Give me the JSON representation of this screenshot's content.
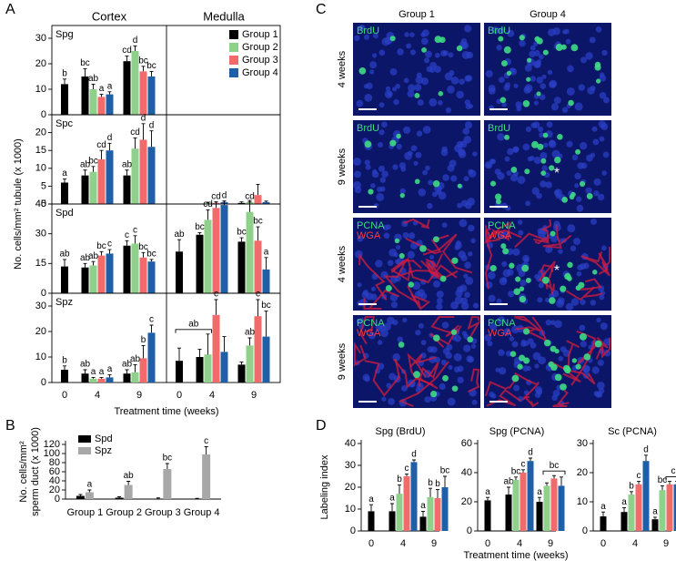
{
  "chart_data": [
    {
      "type": "bar-grid",
      "panel": "A",
      "column_titles": [
        "Cortex",
        "Medulla"
      ],
      "ylabel": "No. cells/mm² tubule (x 1000)",
      "xlabel": "Treatment time (weeks)",
      "categories": [
        "0",
        "4",
        "9",
        "0",
        "4",
        "9"
      ],
      "legend": "top-right",
      "series": [
        {
          "name": "Group 1",
          "color": "#000000"
        },
        {
          "name": "Group 2",
          "color": "#8fd08a"
        },
        {
          "name": "Group 3",
          "color": "#f26b6b"
        },
        {
          "name": "Group 4",
          "color": "#1f5fa8"
        }
      ],
      "rows": [
        {
          "label": "Spg",
          "ylim": [
            0,
            35
          ],
          "yticks": [
            0,
            10,
            20,
            30
          ],
          "values": [
            [
              12,
              15,
              21,
              null,
              null,
              null
            ],
            [
              null,
              10,
              25,
              null,
              null,
              null
            ],
            [
              null,
              7,
              17,
              null,
              null,
              null
            ],
            [
              null,
              8,
              15,
              null,
              null,
              null
            ]
          ],
          "errors": [
            [
              2,
              3,
              2,
              null,
              null,
              null
            ],
            [
              null,
              2,
              2,
              null,
              null,
              null
            ],
            [
              null,
              1,
              2,
              null,
              null,
              null
            ],
            [
              null,
              1,
              2,
              null,
              null,
              null
            ]
          ],
          "letters": [
            [
              "b",
              "bc",
              "cd",
              null,
              null,
              null
            ],
            [
              null,
              "ab",
              "d",
              null,
              null,
              null
            ],
            [
              null,
              "a",
              "bc",
              null,
              null,
              null
            ],
            [
              null,
              "a",
              "bc",
              null,
              null,
              null
            ]
          ]
        },
        {
          "label": "Spc",
          "ylim": [
            0,
            25
          ],
          "yticks": [
            0,
            5,
            10,
            15,
            20
          ],
          "values": [
            [
              6,
              8,
              8,
              0,
              0,
              0.3
            ],
            [
              null,
              9,
              15.5,
              null,
              0.2,
              0.5
            ],
            [
              null,
              12.5,
              18,
              null,
              0.3,
              2.5
            ],
            [
              null,
              15,
              16,
              null,
              0.5,
              0.5
            ]
          ],
          "errors": [
            [
              1,
              1.5,
              1.5,
              0,
              0,
              0.3
            ],
            [
              null,
              1.5,
              3,
              null,
              0.3,
              0.5
            ],
            [
              null,
              2.5,
              4.5,
              null,
              0.3,
              3
            ],
            [
              null,
              2,
              4.5,
              null,
              0.3,
              0.3
            ]
          ],
          "letters": [
            [
              "a",
              "ab",
              "ab",
              null,
              null,
              null
            ],
            [
              null,
              "bc",
              "cd",
              null,
              null,
              null
            ],
            [
              null,
              "cd",
              "d",
              null,
              null,
              null
            ],
            [
              null,
              "d",
              "d",
              null,
              null,
              null
            ]
          ]
        },
        {
          "label": "Spd",
          "ylim": [
            0,
            45
          ],
          "yticks": [
            0,
            15,
            30,
            45
          ],
          "values": [
            [
              13.5,
              13,
              24,
              21,
              29.5,
              26
            ],
            [
              null,
              14,
              25,
              null,
              37,
              41
            ],
            [
              null,
              19,
              18,
              null,
              43,
              26.5
            ],
            [
              null,
              20,
              16,
              null,
              44.5,
              12
            ]
          ],
          "errors": [
            [
              3.5,
              2,
              2.5,
              6,
              1,
              2
            ],
            [
              null,
              2,
              4,
              null,
              5,
              5
            ],
            [
              null,
              2,
              2.5,
              null,
              3,
              7
            ],
            [
              null,
              2,
              1,
              null,
              2,
              6
            ]
          ],
          "letters": [
            [
              "ab",
              "ab",
              "c",
              "ab",
              "bc",
              "bc"
            ],
            [
              null,
              "ab",
              "c",
              null,
              "cd",
              "cd"
            ],
            [
              null,
              "bc",
              "bc",
              null,
              "cd",
              "bc"
            ],
            [
              null,
              "c",
              "bc",
              null,
              "d",
              "a"
            ]
          ]
        },
        {
          "label": "Spz",
          "ylim": [
            0,
            35
          ],
          "yticks": [
            0,
            10,
            20,
            30
          ],
          "values": [
            [
              5,
              3.5,
              3.5,
              8.5,
              10,
              7
            ],
            [
              null,
              1.5,
              4,
              null,
              11,
              14.5
            ],
            [
              null,
              1.5,
              9.5,
              null,
              26.5,
              26
            ],
            [
              null,
              2,
              19.5,
              null,
              12,
              18
            ]
          ],
          "errors": [
            [
              1.5,
              1.5,
              1.5,
              5,
              3,
              1
            ],
            [
              null,
              0.5,
              3,
              null,
              8,
              3
            ],
            [
              null,
              0.5,
              5,
              null,
              6,
              6.5
            ],
            [
              null,
              1,
              3,
              null,
              6,
              10
            ]
          ],
          "letters": [
            [
              "b",
              "ab",
              "ab",
              null,
              null,
              null
            ],
            [
              null,
              "a",
              "ab",
              null,
              null,
              "ab"
            ],
            [
              null,
              "a",
              "b",
              null,
              "c",
              "c"
            ],
            [
              null,
              "a",
              "c",
              null,
              null,
              "bc"
            ]
          ],
          "group_letters": [
            null,
            null,
            null,
            "ab",
            null,
            null
          ]
        }
      ]
    },
    {
      "type": "bar",
      "panel": "B",
      "ylabel": [
        "No. cells/mm²",
        "sperm duct (x 1000)"
      ],
      "legend": "top-left",
      "categories": [
        "Group 1",
        "Group 2",
        "Group 3",
        "Group 4"
      ],
      "ylim": [
        0,
        120
      ],
      "yticks": [
        0,
        20,
        40,
        60,
        80,
        100,
        120
      ],
      "series": [
        {
          "name": "Spd",
          "color": "#000000",
          "values": [
            7,
            3,
            1,
            1
          ],
          "errors": [
            3,
            2,
            1.5,
            0.5
          ]
        },
        {
          "name": "Spz",
          "color": "#a8a8a8",
          "values": [
            15,
            31,
            66,
            98
          ],
          "errors": [
            5,
            8,
            12,
            17
          ],
          "letters": [
            "a",
            "ab",
            "bc",
            "c"
          ]
        }
      ]
    },
    {
      "type": "bar",
      "panel": "D",
      "title": "Spg (BrdU)",
      "ylabel": "Labeling index",
      "categories": [
        "0",
        "4",
        "9"
      ],
      "ylim": [
        0,
        40
      ],
      "yticks": [
        0,
        10,
        20,
        30,
        40
      ],
      "series": [
        {
          "color": "#000000",
          "values": [
            9,
            9,
            6.5
          ],
          "errors": [
            3,
            3.5,
            2.5
          ],
          "letters": [
            "a",
            "a",
            "a"
          ]
        },
        {
          "color": "#8fd08a",
          "values": [
            null,
            17,
            15.5
          ],
          "errors": [
            null,
            4,
            4
          ],
          "letters": [
            null,
            "b",
            "b"
          ]
        },
        {
          "color": "#f26b6b",
          "values": [
            null,
            25,
            15
          ],
          "errors": [
            null,
            1,
            4
          ],
          "letters": [
            null,
            "c",
            "b"
          ]
        },
        {
          "color": "#1f5fa8",
          "values": [
            null,
            31.5,
            20
          ],
          "errors": [
            null,
            1,
            5
          ],
          "letters": [
            null,
            "d",
            "bc"
          ]
        }
      ]
    },
    {
      "type": "bar",
      "title": "Spg (PCNA)",
      "xlabel": "Treatment time (weeks)",
      "categories": [
        "0",
        "4",
        "9"
      ],
      "ylim": [
        0,
        60
      ],
      "yticks": [
        0,
        20,
        40,
        60
      ],
      "series": [
        {
          "color": "#000000",
          "values": [
            21,
            25,
            20
          ],
          "errors": [
            2,
            5,
            3
          ],
          "letters": [
            "a",
            "ab",
            "a"
          ]
        },
        {
          "color": "#8fd08a",
          "values": [
            null,
            35,
            31
          ],
          "errors": [
            null,
            2,
            2
          ],
          "letters": [
            null,
            "bc",
            null
          ]
        },
        {
          "color": "#f26b6b",
          "values": [
            null,
            40,
            36
          ],
          "errors": [
            null,
            2,
            2
          ],
          "letters": [
            null,
            "c",
            null
          ]
        },
        {
          "color": "#1f5fa8",
          "values": [
            null,
            48,
            31
          ],
          "errors": [
            null,
            2,
            6
          ],
          "letters": [
            null,
            "d",
            null
          ]
        }
      ],
      "group_letters": [
        null,
        null,
        "bc"
      ]
    },
    {
      "type": "bar",
      "title": "Sc (PCNA)",
      "categories": [
        "0",
        "4",
        "9"
      ],
      "ylim": [
        0,
        30
      ],
      "yticks": [
        0,
        10,
        20,
        30
      ],
      "series": [
        {
          "color": "#000000",
          "values": [
            5,
            6.5,
            4
          ],
          "errors": [
            1.5,
            1.5,
            0.7
          ],
          "letters": [
            "a",
            "a",
            "a"
          ]
        },
        {
          "color": "#8fd08a",
          "values": [
            null,
            12.5,
            14
          ],
          "errors": [
            null,
            1,
            1.5
          ],
          "letters": [
            null,
            "b",
            "bc"
          ]
        },
        {
          "color": "#f26b6b",
          "values": [
            null,
            16,
            16
          ],
          "errors": [
            null,
            1,
            1
          ],
          "letters": [
            null,
            "c",
            null
          ]
        },
        {
          "color": "#1f5fa8",
          "values": [
            null,
            24,
            16
          ],
          "errors": [
            null,
            2,
            1
          ],
          "letters": [
            null,
            "d",
            null
          ]
        }
      ],
      "group_letters": [
        null,
        null,
        "c"
      ]
    }
  ],
  "micrographs": {
    "panel": "C",
    "columns": [
      "Group 1",
      "Group 4"
    ],
    "rows": [
      {
        "label": "4 weeks",
        "stains": [
          "BrdU"
        ]
      },
      {
        "label": "9 weeks",
        "stains": [
          "BrdU"
        ],
        "annotations": [
          null,
          "*"
        ]
      },
      {
        "label": "4 weeks",
        "stains": [
          "PCNA",
          "WGA"
        ],
        "annotations": [
          null,
          "*"
        ]
      },
      {
        "label": "9 weeks",
        "stains": [
          "PCNA",
          "WGA"
        ]
      }
    ]
  }
}
